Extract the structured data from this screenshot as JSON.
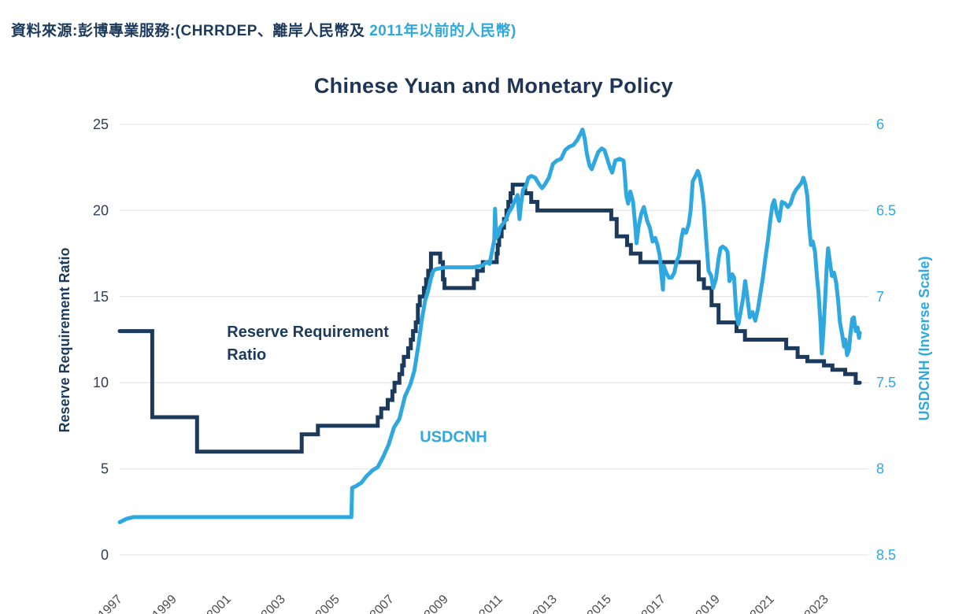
{
  "header": {
    "source_prefix": "資料來源:彭博專業服務:(CHRRDEP、離岸人民幣及 ",
    "source_highlight": "2011年以前的人民幣)"
  },
  "colors": {
    "navy": "#1b3a5c",
    "title_navy": "#1e3554",
    "blue": "#2fa8e0",
    "gridline": "#e7e7e7",
    "x_label_gray": "#4d4d4d",
    "left_tick": "#2e3f55"
  },
  "chart_data": {
    "type": "line",
    "title": "Chinese Yuan and Monetary Policy",
    "left_axis": {
      "label": "Reserve Requirement Ratio",
      "ticks": [
        0,
        5,
        10,
        15,
        20,
        25
      ],
      "range": [
        0,
        25
      ],
      "grid": true
    },
    "right_axis": {
      "label": "USDCNH (Inverse Scale)",
      "ticks": [
        "6",
        "6.5",
        "7",
        "7.5",
        "8",
        "8.5"
      ],
      "range": [
        6,
        8.5
      ],
      "inverse_scale": true
    },
    "x_axis": {
      "tick_years": [
        1997,
        1999,
        2001,
        2003,
        2005,
        2007,
        2009,
        2011,
        2013,
        2015,
        2017,
        2019,
        2021,
        2023
      ],
      "range": [
        1997,
        2024.4
      ]
    },
    "legend_position": "in-plot-annotations",
    "annotations": [
      {
        "lines": [
          "Reserve Requirement",
          "Ratio"
        ],
        "year": 2000.95,
        "left_value": 12.65,
        "color_key": "navy",
        "font_size": 20
      },
      {
        "lines": [
          "USDCNH"
        ],
        "year": 2008.05,
        "left_value": 6.55,
        "color_key": "blue",
        "font_size": 20
      }
    ],
    "series": [
      {
        "name": "Reserve Requirement Ratio",
        "axis": "left",
        "style": "step",
        "color_key": "navy",
        "stroke_width": 5,
        "end_year": 2024.25,
        "points": [
          [
            1997.0,
            13
          ],
          [
            1998.2,
            8
          ],
          [
            1999.85,
            6
          ],
          [
            2003.7,
            7
          ],
          [
            2004.3,
            7.5
          ],
          [
            2006.5,
            8
          ],
          [
            2006.63,
            8.5
          ],
          [
            2006.87,
            9
          ],
          [
            2007.04,
            9.5
          ],
          [
            2007.12,
            10
          ],
          [
            2007.3,
            10.5
          ],
          [
            2007.4,
            11
          ],
          [
            2007.46,
            11.5
          ],
          [
            2007.62,
            12
          ],
          [
            2007.72,
            12.5
          ],
          [
            2007.8,
            13
          ],
          [
            2007.9,
            13.5
          ],
          [
            2007.98,
            14.5
          ],
          [
            2008.05,
            15
          ],
          [
            2008.2,
            15.5
          ],
          [
            2008.28,
            16
          ],
          [
            2008.36,
            16.5
          ],
          [
            2008.46,
            17.5
          ],
          [
            2008.8,
            17
          ],
          [
            2008.9,
            16
          ],
          [
            2008.96,
            15.5
          ],
          [
            2010.04,
            16
          ],
          [
            2010.16,
            16.5
          ],
          [
            2010.37,
            17
          ],
          [
            2010.88,
            17.5
          ],
          [
            2010.92,
            18
          ],
          [
            2010.97,
            18.5
          ],
          [
            2011.06,
            19
          ],
          [
            2011.15,
            19.5
          ],
          [
            2011.24,
            20
          ],
          [
            2011.31,
            20.5
          ],
          [
            2011.39,
            21
          ],
          [
            2011.47,
            21.5
          ],
          [
            2011.93,
            21
          ],
          [
            2012.15,
            20.5
          ],
          [
            2012.38,
            20
          ],
          [
            2015.1,
            19.5
          ],
          [
            2015.3,
            18.5
          ],
          [
            2015.68,
            18
          ],
          [
            2015.82,
            17.5
          ],
          [
            2016.17,
            17
          ],
          [
            2018.32,
            16
          ],
          [
            2018.51,
            15.5
          ],
          [
            2018.79,
            14.5
          ],
          [
            2019.05,
            13.5
          ],
          [
            2019.71,
            13
          ],
          [
            2020.02,
            12.5
          ],
          [
            2021.54,
            12
          ],
          [
            2021.96,
            11.5
          ],
          [
            2022.32,
            11.25
          ],
          [
            2022.93,
            11
          ],
          [
            2023.24,
            10.75
          ],
          [
            2023.71,
            10.5
          ],
          [
            2024.1,
            10
          ]
        ]
      },
      {
        "name": "USDCNH",
        "axis": "right",
        "style": "line",
        "color_key": "blue",
        "stroke_width": 5,
        "points": [
          [
            1997.0,
            8.31
          ],
          [
            1997.25,
            8.29
          ],
          [
            1997.5,
            8.28
          ],
          [
            1999,
            8.28
          ],
          [
            2001,
            8.28
          ],
          [
            2003,
            8.28
          ],
          [
            2005.0,
            8.28
          ],
          [
            2005.53,
            8.28
          ],
          [
            2005.56,
            8.11
          ],
          [
            2005.7,
            8.1
          ],
          [
            2005.9,
            8.08
          ],
          [
            2006.1,
            8.04
          ],
          [
            2006.3,
            8.01
          ],
          [
            2006.5,
            7.99
          ],
          [
            2006.7,
            7.93
          ],
          [
            2006.9,
            7.86
          ],
          [
            2007.1,
            7.76
          ],
          [
            2007.3,
            7.71
          ],
          [
            2007.5,
            7.58
          ],
          [
            2007.7,
            7.51
          ],
          [
            2007.85,
            7.43
          ],
          [
            2008.0,
            7.28
          ],
          [
            2008.12,
            7.14
          ],
          [
            2008.25,
            7.02
          ],
          [
            2008.35,
            6.97
          ],
          [
            2008.45,
            6.9
          ],
          [
            2008.55,
            6.85
          ],
          [
            2008.65,
            6.84
          ],
          [
            2009.0,
            6.83
          ],
          [
            2009.5,
            6.83
          ],
          [
            2010.0,
            6.83
          ],
          [
            2010.35,
            6.82
          ],
          [
            2010.5,
            6.8
          ],
          [
            2010.62,
            6.81
          ],
          [
            2010.72,
            6.73
          ],
          [
            2010.79,
            6.67
          ],
          [
            2010.82,
            6.49
          ],
          [
            2010.86,
            6.66
          ],
          [
            2010.95,
            6.64
          ],
          [
            2011.0,
            6.6
          ],
          [
            2011.1,
            6.58
          ],
          [
            2011.2,
            6.56
          ],
          [
            2011.33,
            6.51
          ],
          [
            2011.45,
            6.48
          ],
          [
            2011.55,
            6.44
          ],
          [
            2011.65,
            6.41
          ],
          [
            2011.72,
            6.55
          ],
          [
            2011.78,
            6.46
          ],
          [
            2011.85,
            6.38
          ],
          [
            2011.95,
            6.36
          ],
          [
            2012.05,
            6.31
          ],
          [
            2012.15,
            6.3
          ],
          [
            2012.3,
            6.31
          ],
          [
            2012.45,
            6.35
          ],
          [
            2012.55,
            6.37
          ],
          [
            2012.65,
            6.35
          ],
          [
            2012.8,
            6.31
          ],
          [
            2012.95,
            6.23
          ],
          [
            2013.1,
            6.21
          ],
          [
            2013.25,
            6.2
          ],
          [
            2013.4,
            6.15
          ],
          [
            2013.55,
            6.13
          ],
          [
            2013.7,
            6.12
          ],
          [
            2013.85,
            6.09
          ],
          [
            2013.95,
            6.06
          ],
          [
            2014.04,
            6.03
          ],
          [
            2014.12,
            6.08
          ],
          [
            2014.2,
            6.17
          ],
          [
            2014.3,
            6.24
          ],
          [
            2014.38,
            6.26
          ],
          [
            2014.5,
            6.21
          ],
          [
            2014.62,
            6.16
          ],
          [
            2014.75,
            6.14
          ],
          [
            2014.85,
            6.15
          ],
          [
            2014.95,
            6.2
          ],
          [
            2015.05,
            6.25
          ],
          [
            2015.13,
            6.28
          ],
          [
            2015.25,
            6.21
          ],
          [
            2015.4,
            6.2
          ],
          [
            2015.55,
            6.21
          ],
          [
            2015.6,
            6.3
          ],
          [
            2015.65,
            6.41
          ],
          [
            2015.72,
            6.46
          ],
          [
            2015.8,
            6.39
          ],
          [
            2015.9,
            6.45
          ],
          [
            2015.97,
            6.57
          ],
          [
            2016.03,
            6.69
          ],
          [
            2016.1,
            6.6
          ],
          [
            2016.2,
            6.52
          ],
          [
            2016.3,
            6.48
          ],
          [
            2016.42,
            6.56
          ],
          [
            2016.52,
            6.6
          ],
          [
            2016.62,
            6.68
          ],
          [
            2016.72,
            6.66
          ],
          [
            2016.8,
            6.7
          ],
          [
            2016.88,
            6.76
          ],
          [
            2016.95,
            6.88
          ],
          [
            2017.0,
            6.96
          ],
          [
            2017.03,
            6.82
          ],
          [
            2017.12,
            6.86
          ],
          [
            2017.22,
            6.89
          ],
          [
            2017.32,
            6.89
          ],
          [
            2017.42,
            6.86
          ],
          [
            2017.52,
            6.79
          ],
          [
            2017.6,
            6.76
          ],
          [
            2017.68,
            6.66
          ],
          [
            2017.75,
            6.61
          ],
          [
            2017.85,
            6.63
          ],
          [
            2017.95,
            6.58
          ],
          [
            2018.02,
            6.5
          ],
          [
            2018.1,
            6.33
          ],
          [
            2018.2,
            6.3
          ],
          [
            2018.28,
            6.27
          ],
          [
            2018.35,
            6.3
          ],
          [
            2018.42,
            6.36
          ],
          [
            2018.5,
            6.46
          ],
          [
            2018.58,
            6.64
          ],
          [
            2018.68,
            6.85
          ],
          [
            2018.78,
            6.88
          ],
          [
            2018.85,
            6.95
          ],
          [
            2018.95,
            6.9
          ],
          [
            2019.05,
            6.78
          ],
          [
            2019.12,
            6.72
          ],
          [
            2019.2,
            6.71
          ],
          [
            2019.3,
            6.72
          ],
          [
            2019.38,
            6.74
          ],
          [
            2019.45,
            6.91
          ],
          [
            2019.55,
            6.87
          ],
          [
            2019.62,
            6.89
          ],
          [
            2019.7,
            7.1
          ],
          [
            2019.78,
            7.16
          ],
          [
            2019.85,
            7.1
          ],
          [
            2019.95,
            7.01
          ],
          [
            2020.03,
            6.91
          ],
          [
            2020.1,
            6.99
          ],
          [
            2020.2,
            7.12
          ],
          [
            2020.3,
            7.09
          ],
          [
            2020.4,
            7.14
          ],
          [
            2020.5,
            7.07
          ],
          [
            2020.58,
            6.99
          ],
          [
            2020.68,
            6.89
          ],
          [
            2020.78,
            6.77
          ],
          [
            2020.87,
            6.67
          ],
          [
            2020.95,
            6.56
          ],
          [
            2021.03,
            6.47
          ],
          [
            2021.1,
            6.44
          ],
          [
            2021.2,
            6.52
          ],
          [
            2021.28,
            6.56
          ],
          [
            2021.38,
            6.45
          ],
          [
            2021.5,
            6.46
          ],
          [
            2021.6,
            6.48
          ],
          [
            2021.7,
            6.46
          ],
          [
            2021.8,
            6.41
          ],
          [
            2021.9,
            6.38
          ],
          [
            2022.0,
            6.36
          ],
          [
            2022.1,
            6.34
          ],
          [
            2022.17,
            6.31
          ],
          [
            2022.25,
            6.35
          ],
          [
            2022.32,
            6.42
          ],
          [
            2022.38,
            6.58
          ],
          [
            2022.45,
            6.7
          ],
          [
            2022.52,
            6.68
          ],
          [
            2022.6,
            6.74
          ],
          [
            2022.67,
            6.88
          ],
          [
            2022.73,
            6.98
          ],
          [
            2022.8,
            7.15
          ],
          [
            2022.85,
            7.33
          ],
          [
            2022.9,
            7.22
          ],
          [
            2022.97,
            7.02
          ],
          [
            2023.03,
            6.83
          ],
          [
            2023.08,
            6.72
          ],
          [
            2023.15,
            6.8
          ],
          [
            2023.22,
            6.88
          ],
          [
            2023.3,
            6.86
          ],
          [
            2023.38,
            6.92
          ],
          [
            2023.45,
            7.02
          ],
          [
            2023.52,
            7.15
          ],
          [
            2023.6,
            7.22
          ],
          [
            2023.67,
            7.29
          ],
          [
            2023.72,
            7.25
          ],
          [
            2023.78,
            7.34
          ],
          [
            2023.85,
            7.31
          ],
          [
            2023.9,
            7.22
          ],
          [
            2023.97,
            7.13
          ],
          [
            2024.03,
            7.12
          ],
          [
            2024.1,
            7.2
          ],
          [
            2024.17,
            7.18
          ],
          [
            2024.22,
            7.24
          ],
          [
            2024.25,
            7.21
          ]
        ]
      }
    ]
  }
}
